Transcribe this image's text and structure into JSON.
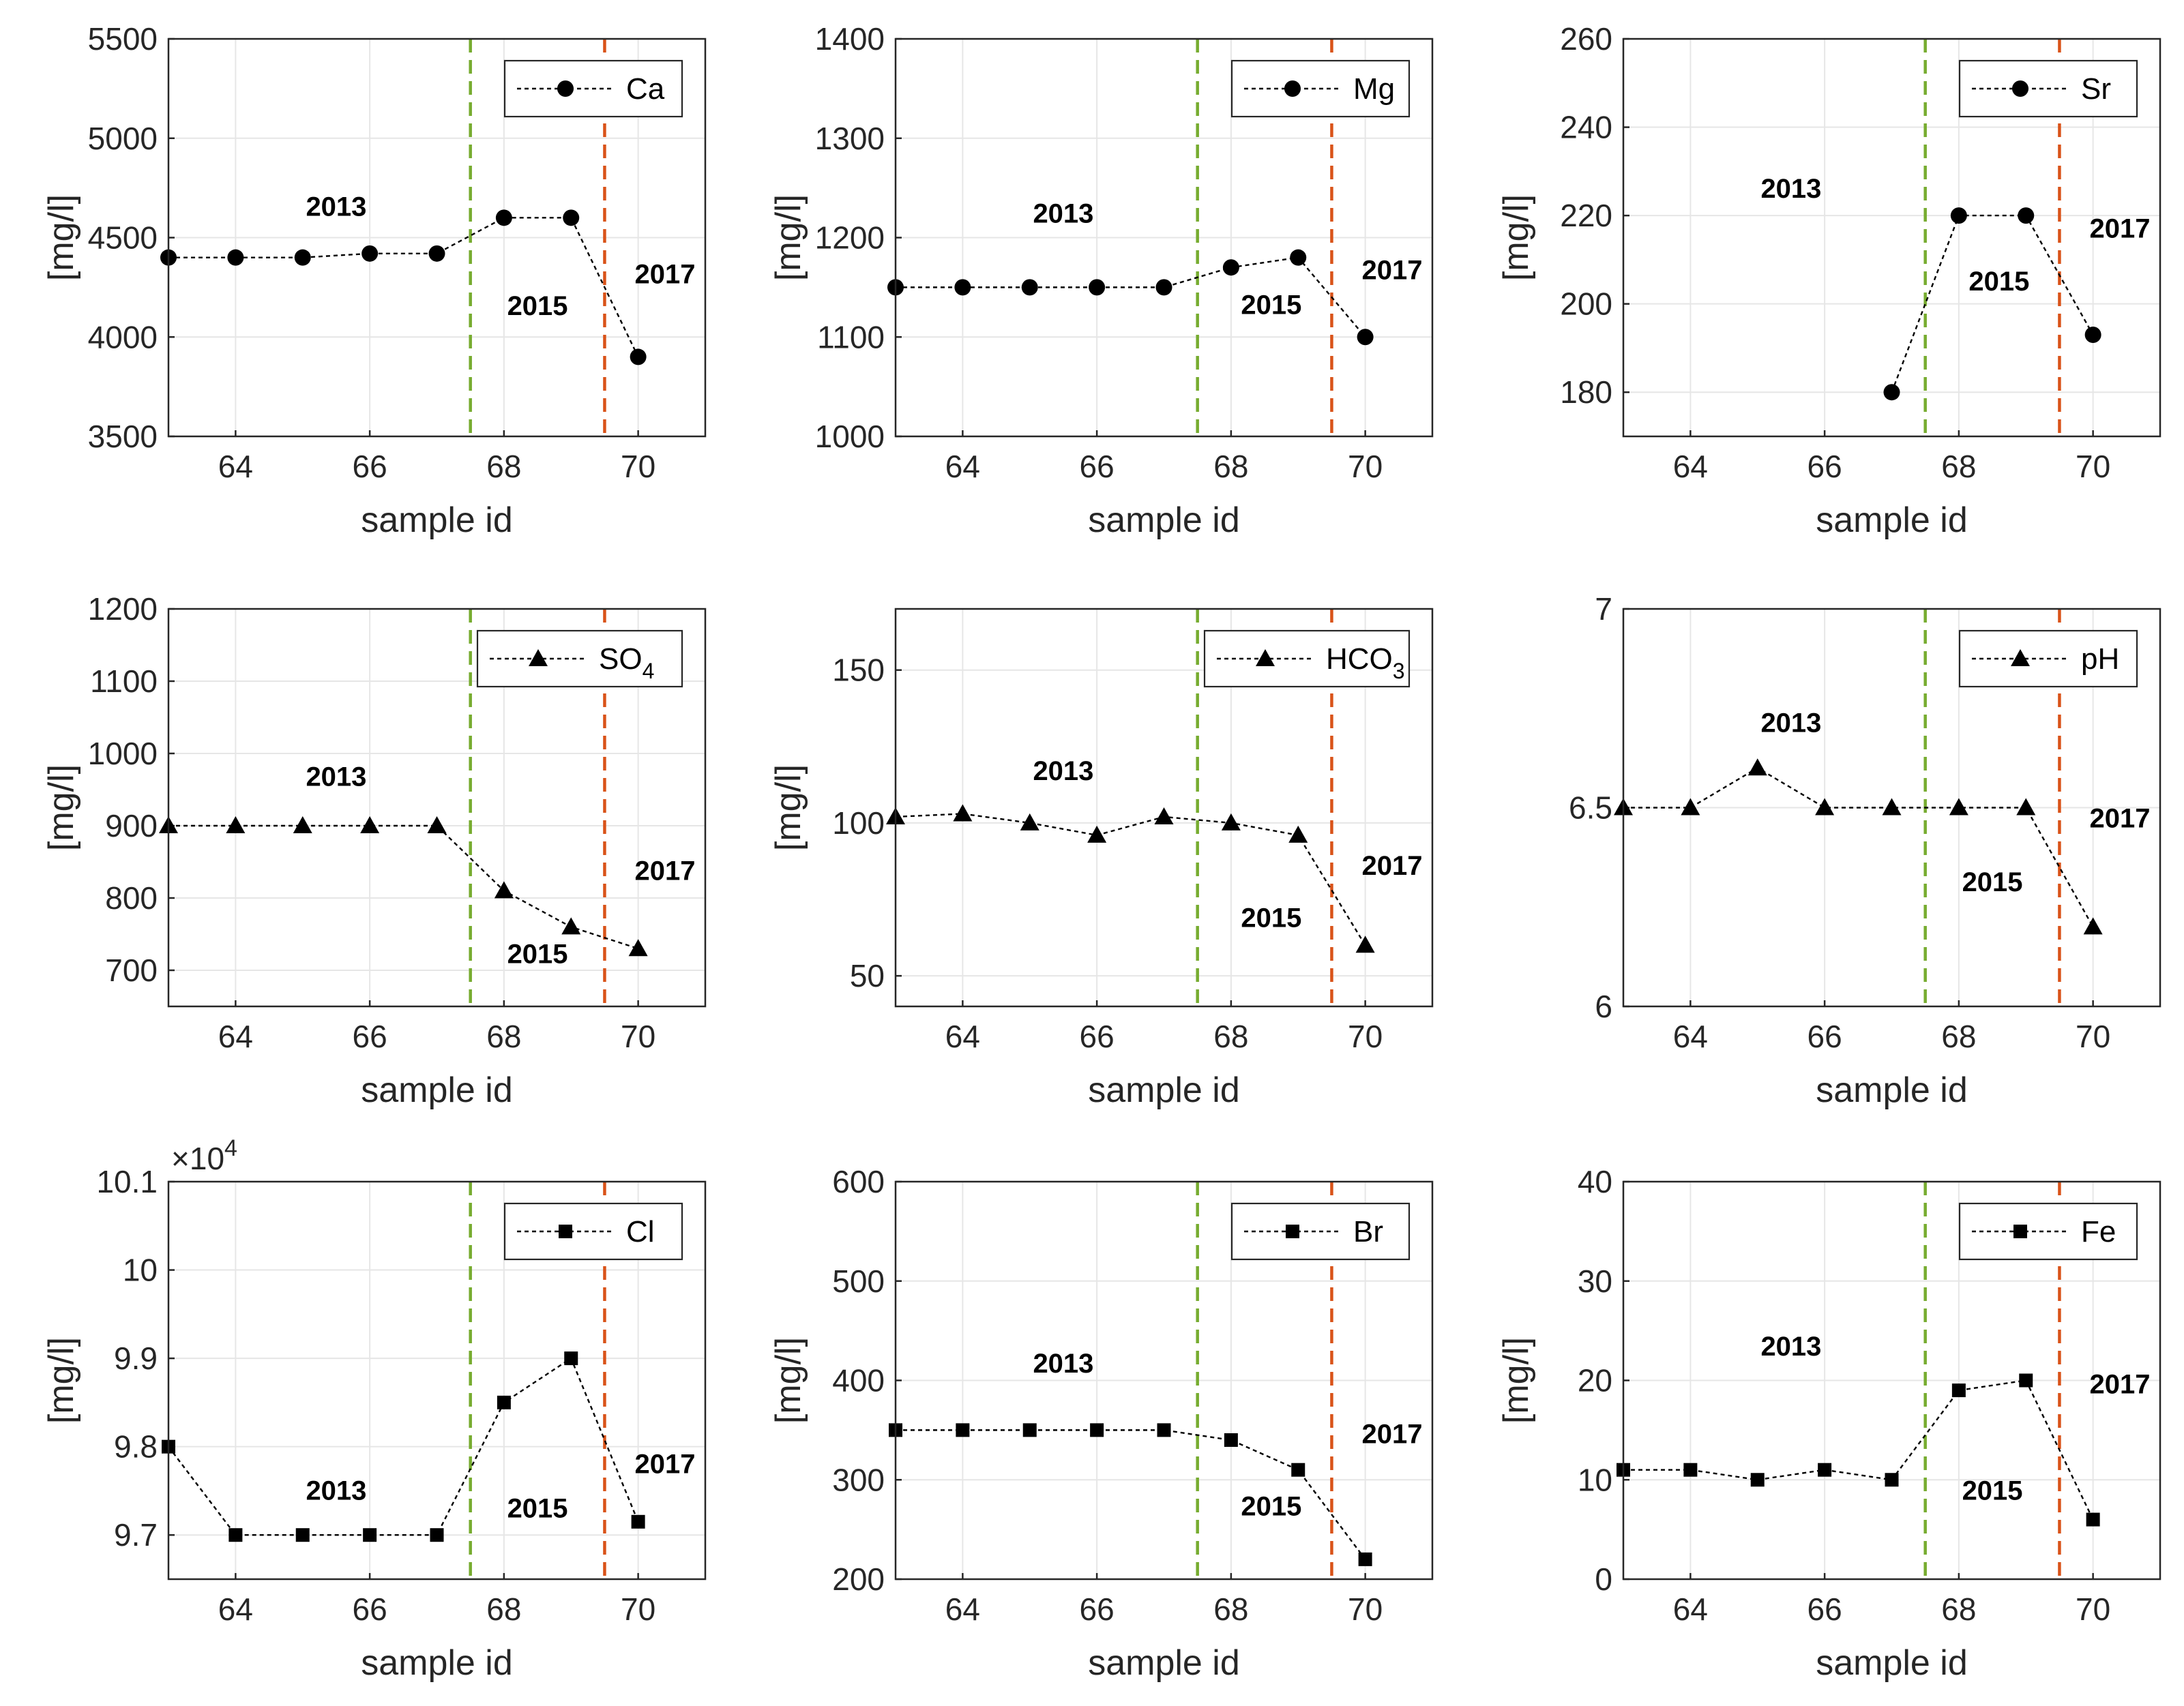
{
  "colors": {
    "line_2015": "#77ac30",
    "line_2017": "#d95319",
    "marker": "#000000",
    "grid": "#e6e6e6"
  },
  "chart_data": [
    {
      "type": "line",
      "legend": "Ca",
      "marker": "circle",
      "xlabel": "sample id",
      "ylabel": "[mg/l]",
      "xlim": [
        63,
        71
      ],
      "xticks": [
        "64",
        "66",
        "68",
        "70"
      ],
      "ylim": [
        3500,
        5500
      ],
      "yticks": [
        "3500",
        "4000",
        "4500",
        "5000",
        "5500"
      ],
      "x": [
        63,
        64,
        65,
        66,
        67,
        68,
        69,
        70
      ],
      "values": [
        4400,
        4400,
        4400,
        4420,
        4420,
        4600,
        4600,
        3900
      ],
      "vlines": [
        67.5,
        69.5
      ],
      "annotations": [
        {
          "text": "2013",
          "x": 65.5,
          "y": 4610
        },
        {
          "text": "2015",
          "x": 68.5,
          "y": 4110
        },
        {
          "text": "2017",
          "x": 70.4,
          "y": 4270
        }
      ]
    },
    {
      "type": "line",
      "legend": "Mg",
      "marker": "circle",
      "xlabel": "sample id",
      "ylabel": "[mg/l]",
      "xlim": [
        63,
        71
      ],
      "xticks": [
        "64",
        "66",
        "68",
        "70"
      ],
      "ylim": [
        1000,
        1400
      ],
      "yticks": [
        "1000",
        "1100",
        "1200",
        "1300",
        "1400"
      ],
      "x": [
        63,
        64,
        65,
        66,
        67,
        68,
        69,
        70
      ],
      "values": [
        1150,
        1150,
        1150,
        1150,
        1150,
        1170,
        1180,
        1100
      ],
      "vlines": [
        67.5,
        69.5
      ],
      "annotations": [
        {
          "text": "2013",
          "x": 65.5,
          "y": 1215
        },
        {
          "text": "2015",
          "x": 68.6,
          "y": 1123
        },
        {
          "text": "2017",
          "x": 70.4,
          "y": 1158
        }
      ]
    },
    {
      "type": "line",
      "legend": "Sr",
      "marker": "circle",
      "xlabel": "sample id",
      "ylabel": "[mg/l]",
      "xlim": [
        63,
        71
      ],
      "xticks": [
        "64",
        "66",
        "68",
        "70"
      ],
      "ylim": [
        170,
        260
      ],
      "yticks": [
        "180",
        "200",
        "220",
        "240",
        "260"
      ],
      "x": [
        67,
        68,
        69,
        70
      ],
      "values": [
        180,
        220,
        220,
        193
      ],
      "vlines": [
        67.5,
        69.5
      ],
      "annotations": [
        {
          "text": "2013",
          "x": 65.5,
          "y": 224
        },
        {
          "text": "2015",
          "x": 68.6,
          "y": 203
        },
        {
          "text": "2017",
          "x": 70.4,
          "y": 215
        }
      ]
    },
    {
      "type": "line",
      "legend": "SO",
      "legend_sub": "4",
      "marker": "triangle",
      "xlabel": "sample id",
      "ylabel": "[mg/l]",
      "xlim": [
        63,
        71
      ],
      "xticks": [
        "64",
        "66",
        "68",
        "70"
      ],
      "ylim": [
        650,
        1200
      ],
      "yticks": [
        "700",
        "800",
        "900",
        "1000",
        "1100",
        "1200"
      ],
      "x": [
        63,
        64,
        65,
        66,
        67,
        68,
        69,
        70
      ],
      "values": [
        900,
        900,
        900,
        900,
        900,
        810,
        760,
        730
      ],
      "vlines": [
        67.5,
        69.5
      ],
      "annotations": [
        {
          "text": "2013",
          "x": 65.5,
          "y": 955
        },
        {
          "text": "2015",
          "x": 68.5,
          "y": 710
        },
        {
          "text": "2017",
          "x": 70.4,
          "y": 825
        }
      ]
    },
    {
      "type": "line",
      "legend": "HCO",
      "legend_sub": "3",
      "marker": "triangle",
      "xlabel": "sample id",
      "ylabel": "[mg/l]",
      "xlim": [
        63,
        71
      ],
      "xticks": [
        "64",
        "66",
        "68",
        "70"
      ],
      "ylim": [
        40,
        170
      ],
      "yticks": [
        "50",
        "100",
        "150"
      ],
      "x": [
        63,
        64,
        65,
        66,
        67,
        68,
        69,
        70
      ],
      "values": [
        102,
        103,
        100,
        96,
        102,
        100,
        96,
        60
      ],
      "vlines": [
        67.5,
        69.5
      ],
      "annotations": [
        {
          "text": "2013",
          "x": 65.5,
          "y": 114
        },
        {
          "text": "2015",
          "x": 68.6,
          "y": 66
        },
        {
          "text": "2017",
          "x": 70.4,
          "y": 83
        }
      ]
    },
    {
      "type": "line",
      "legend": "pH",
      "marker": "triangle",
      "xlabel": "sample id",
      "ylabel": "",
      "xlim": [
        63,
        71
      ],
      "xticks": [
        "64",
        "66",
        "68",
        "70"
      ],
      "ylim": [
        6,
        7
      ],
      "yticks": [
        "6",
        "6.5",
        "7"
      ],
      "x": [
        63,
        64,
        65,
        66,
        67,
        68,
        69,
        70
      ],
      "values": [
        6.5,
        6.5,
        6.6,
        6.5,
        6.5,
        6.5,
        6.5,
        6.2
      ],
      "vlines": [
        67.5,
        69.5
      ],
      "annotations": [
        {
          "text": "2013",
          "x": 65.5,
          "y": 6.69
        },
        {
          "text": "2015",
          "x": 68.5,
          "y": 6.29
        },
        {
          "text": "2017",
          "x": 70.4,
          "y": 6.45
        }
      ]
    },
    {
      "type": "line",
      "legend": "Cl",
      "marker": "square",
      "xlabel": "sample id",
      "ylabel": "[mg/l]",
      "xlim": [
        63,
        71
      ],
      "xticks": [
        "64",
        "66",
        "68",
        "70"
      ],
      "ylim": [
        9.65,
        10.1
      ],
      "yticks": [
        "9.7",
        "9.8",
        "9.9",
        "10",
        "10.1"
      ],
      "y_exponent": "4",
      "x": [
        63,
        64,
        65,
        66,
        67,
        68,
        69,
        70
      ],
      "values": [
        9.8,
        9.7,
        9.7,
        9.7,
        9.7,
        9.85,
        9.9,
        9.715
      ],
      "vlines": [
        67.5,
        69.5
      ],
      "annotations": [
        {
          "text": "2013",
          "x": 65.5,
          "y": 9.74
        },
        {
          "text": "2015",
          "x": 68.5,
          "y": 9.72
        },
        {
          "text": "2017",
          "x": 70.4,
          "y": 9.77
        }
      ]
    },
    {
      "type": "line",
      "legend": "Br",
      "marker": "square",
      "xlabel": "sample id",
      "ylabel": "[mg/l]",
      "xlim": [
        63,
        71
      ],
      "xticks": [
        "64",
        "66",
        "68",
        "70"
      ],
      "ylim": [
        200,
        600
      ],
      "yticks": [
        "200",
        "300",
        "400",
        "500",
        "600"
      ],
      "x": [
        63,
        64,
        65,
        66,
        67,
        68,
        69,
        70
      ],
      "values": [
        350,
        350,
        350,
        350,
        350,
        340,
        310,
        220
      ],
      "vlines": [
        67.5,
        69.5
      ],
      "annotations": [
        {
          "text": "2013",
          "x": 65.5,
          "y": 408
        },
        {
          "text": "2015",
          "x": 68.6,
          "y": 264
        },
        {
          "text": "2017",
          "x": 70.4,
          "y": 337
        }
      ]
    },
    {
      "type": "line",
      "legend": "Fe",
      "marker": "square",
      "xlabel": "sample id",
      "ylabel": "[mg/l]",
      "xlim": [
        63,
        71
      ],
      "xticks": [
        "64",
        "66",
        "68",
        "70"
      ],
      "ylim": [
        0,
        40
      ],
      "yticks": [
        "0",
        "10",
        "20",
        "30",
        "40"
      ],
      "x": [
        63,
        64,
        65,
        66,
        67,
        68,
        69,
        70
      ],
      "values": [
        11,
        11,
        10,
        11,
        10,
        19,
        20,
        6
      ],
      "vlines": [
        67.5,
        69.5
      ],
      "annotations": [
        {
          "text": "2013",
          "x": 65.5,
          "y": 22.5
        },
        {
          "text": "2015",
          "x": 68.5,
          "y": 8
        },
        {
          "text": "2017",
          "x": 70.4,
          "y": 18.7
        }
      ]
    }
  ]
}
